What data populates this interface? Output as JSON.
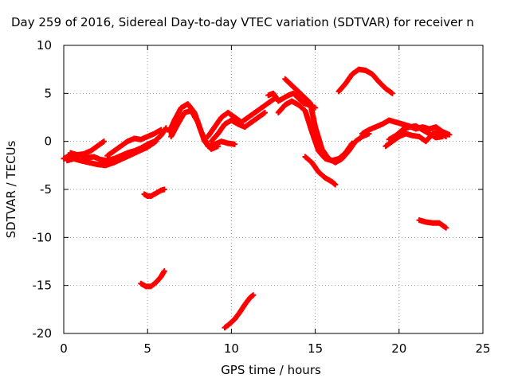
{
  "chart_data": {
    "type": "scatter",
    "title": "Day 259 of 2016, Sidereal Day-to-day VTEC variation (SDTVAR) for receiver n",
    "xlabel": "GPS time / hours",
    "ylabel": "SDTVAR / TECUs",
    "xlim": [
      0,
      25
    ],
    "ylim": [
      -20,
      10
    ],
    "xticks": [
      0,
      5,
      10,
      15,
      20,
      25
    ],
    "yticks": [
      -20,
      -15,
      -10,
      -5,
      0,
      5,
      10
    ],
    "grid": true,
    "marker": "plus",
    "series_color": "#ff0000",
    "series": [
      {
        "x": [
          0.0,
          0.3,
          0.6,
          1.0,
          1.4,
          1.8,
          2.2,
          2.6,
          3.0,
          3.4,
          3.8,
          4.2,
          4.6,
          5.0,
          5.4,
          5.8,
          6.1
        ],
        "y": [
          -1.8,
          -1.5,
          -1.6,
          -1.4,
          -1.7,
          -1.6,
          -1.9,
          -2.0,
          -1.8,
          -1.5,
          -1.2,
          -1.0,
          -0.7,
          -0.3,
          0.0,
          0.6,
          1.4
        ]
      },
      {
        "x": [
          0.2,
          0.6,
          1.0,
          1.5,
          2.0,
          2.5,
          3.0,
          3.5,
          4.0,
          4.5,
          5.0,
          5.5
        ],
        "y": [
          -2.0,
          -1.8,
          -2.0,
          -2.2,
          -2.4,
          -2.5,
          -2.2,
          -1.8,
          -1.4,
          -1.0,
          -0.6,
          0.0
        ]
      },
      {
        "x": [
          0.4,
          0.8,
          1.2,
          1.6,
          2.0,
          2.4
        ],
        "y": [
          -1.2,
          -1.4,
          -1.3,
          -1.0,
          -0.5,
          0.0
        ]
      },
      {
        "x": [
          2.6,
          3.0,
          3.4,
          3.8,
          4.2,
          4.6,
          5.0,
          5.4,
          5.8
        ],
        "y": [
          -1.5,
          -1.0,
          -0.5,
          0.0,
          0.3,
          0.2,
          0.5,
          0.8,
          1.2
        ]
      },
      {
        "x": [
          4.8,
          5.0,
          5.2,
          5.5,
          5.8,
          6.0
        ],
        "y": [
          -5.5,
          -5.7,
          -5.7,
          -5.4,
          -5.1,
          -5.0
        ]
      },
      {
        "x": [
          4.6,
          4.9,
          5.2,
          5.5,
          5.8,
          6.0
        ],
        "y": [
          -14.8,
          -15.1,
          -15.1,
          -14.7,
          -14.1,
          -13.5
        ]
      },
      {
        "x": [
          6.3,
          6.6,
          7.0,
          7.4,
          7.8,
          8.2,
          8.6,
          9.0,
          9.4,
          9.8,
          10.2
        ],
        "y": [
          1.0,
          2.2,
          3.5,
          3.9,
          3.0,
          1.0,
          -0.5,
          -0.3,
          0.0,
          -0.2,
          -0.3
        ]
      },
      {
        "x": [
          6.4,
          6.8,
          7.2,
          7.6,
          8.0,
          8.4,
          8.8,
          9.2
        ],
        "y": [
          0.5,
          1.8,
          3.0,
          3.2,
          2.0,
          0.0,
          -0.8,
          -0.5
        ]
      },
      {
        "x": [
          8.6,
          9.0,
          9.4,
          9.8,
          10.2,
          10.6,
          11.0,
          11.4,
          11.8,
          12.2,
          12.6
        ],
        "y": [
          0.5,
          1.5,
          2.5,
          3.0,
          2.5,
          2.0,
          2.5,
          3.0,
          3.5,
          4.0,
          4.5
        ]
      },
      {
        "x": [
          8.8,
          9.2,
          9.6,
          10.0,
          10.4,
          10.8,
          11.2,
          11.6,
          12.0
        ],
        "y": [
          0.0,
          0.8,
          1.8,
          2.2,
          1.8,
          1.5,
          2.0,
          2.5,
          3.0
        ]
      },
      {
        "x": [
          9.6,
          9.9,
          10.2,
          10.5,
          10.8,
          11.1,
          11.3
        ],
        "y": [
          -19.4,
          -19.0,
          -18.5,
          -17.8,
          -17.0,
          -16.3,
          -16.0
        ]
      },
      {
        "x": [
          12.2,
          12.5,
          12.8,
          13.1,
          13.4,
          13.7,
          14.0,
          14.3,
          14.6,
          15.0
        ],
        "y": [
          4.8,
          5.0,
          4.2,
          4.5,
          4.8,
          5.0,
          4.5,
          4.0,
          3.8,
          3.5
        ]
      },
      {
        "x": [
          13.2,
          13.5,
          13.8,
          14.1,
          14.4,
          14.7,
          15.0,
          15.4,
          15.8,
          16.2,
          16.6,
          17.0,
          17.4,
          17.8,
          18.2
        ],
        "y": [
          6.5,
          6.0,
          5.5,
          5.0,
          4.5,
          4.0,
          1.5,
          -0.8,
          -1.8,
          -2.2,
          -1.8,
          -1.0,
          0.0,
          0.5,
          0.8
        ]
      },
      {
        "x": [
          12.8,
          13.2,
          13.6,
          14.0,
          14.4,
          14.8,
          15.2,
          15.6,
          16.0,
          16.4,
          16.8,
          17.2
        ],
        "y": [
          3.0,
          3.8,
          4.2,
          3.8,
          3.2,
          1.0,
          -1.0,
          -1.8,
          -2.0,
          -1.8,
          -1.2,
          -0.2
        ]
      },
      {
        "x": [
          14.4,
          14.8,
          15.2,
          15.6,
          16.0,
          16.2
        ],
        "y": [
          -1.6,
          -2.2,
          -3.2,
          -3.8,
          -4.2,
          -4.5
        ]
      },
      {
        "x": [
          16.4,
          16.8,
          17.2,
          17.6,
          18.0,
          18.4,
          18.8,
          19.2,
          19.6
        ],
        "y": [
          5.2,
          6.0,
          7.0,
          7.5,
          7.4,
          7.0,
          6.2,
          5.5,
          5.0
        ]
      },
      {
        "x": [
          17.8,
          18.2,
          18.6,
          19.0,
          19.4,
          19.8,
          20.2,
          20.6,
          21.0,
          21.4,
          21.8,
          22.2,
          22.6,
          23.0
        ],
        "y": [
          0.8,
          1.2,
          1.5,
          1.8,
          2.2,
          2.0,
          1.8,
          1.6,
          1.3,
          1.5,
          1.3,
          1.5,
          1.0,
          0.7
        ]
      },
      {
        "x": [
          19.2,
          19.6,
          20.0,
          20.4,
          20.8,
          21.2,
          21.6,
          22.0,
          22.4,
          22.8
        ],
        "y": [
          -0.5,
          0.0,
          0.5,
          0.8,
          0.6,
          0.5,
          0.0,
          0.8,
          1.0,
          0.5
        ]
      },
      {
        "x": [
          19.4,
          19.8,
          20.2,
          20.6,
          21.0,
          21.4,
          21.8,
          22.2,
          22.6
        ],
        "y": [
          0.2,
          0.6,
          1.2,
          1.5,
          1.6,
          1.2,
          0.8,
          0.4,
          0.5
        ]
      },
      {
        "x": [
          21.2,
          21.6,
          22.0,
          22.4,
          22.8
        ],
        "y": [
          -8.2,
          -8.4,
          -8.5,
          -8.5,
          -9.0
        ]
      }
    ]
  }
}
